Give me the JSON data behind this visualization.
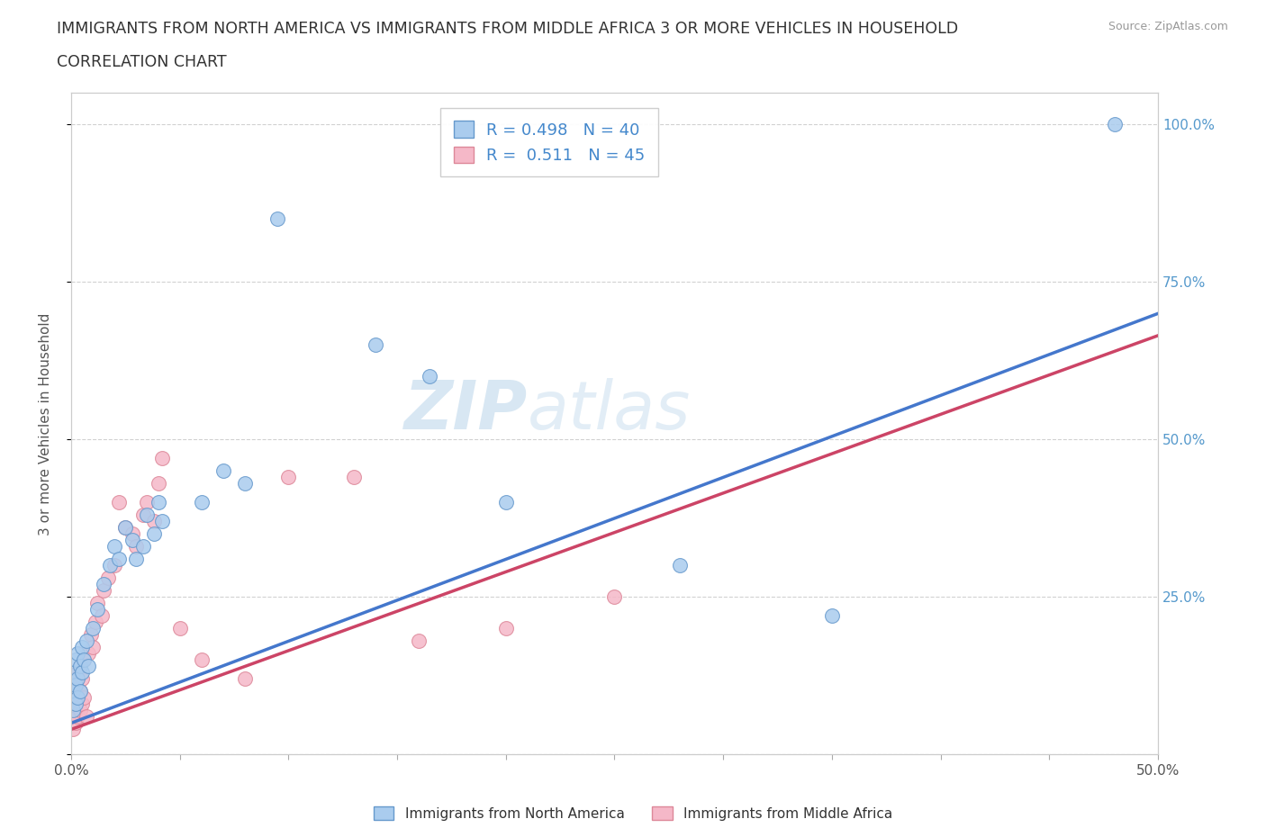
{
  "title_line1": "IMMIGRANTS FROM NORTH AMERICA VS IMMIGRANTS FROM MIDDLE AFRICA 3 OR MORE VEHICLES IN HOUSEHOLD",
  "title_line2": "CORRELATION CHART",
  "source_text": "Source: ZipAtlas.com",
  "ylabel": "3 or more Vehicles in Household",
  "xlim": [
    0.0,
    0.5
  ],
  "ylim": [
    0.0,
    1.05
  ],
  "xticks": [
    0.0,
    0.05,
    0.1,
    0.15,
    0.2,
    0.25,
    0.3,
    0.35,
    0.4,
    0.45,
    0.5
  ],
  "xticklabels": [
    "0.0%",
    "",
    "",
    "",
    "",
    "",
    "",
    "",
    "",
    "",
    "50.0%"
  ],
  "yticks": [
    0.0,
    0.25,
    0.5,
    0.75,
    1.0
  ],
  "yticklabels": [
    "",
    "25.0%",
    "50.0%",
    "75.0%",
    "100.0%"
  ],
  "grid_color": "#cccccc",
  "background_color": "#ffffff",
  "watermark_zip": "ZIP",
  "watermark_atlas": "atlas",
  "north_america_color": "#aaccee",
  "north_america_edge": "#6699cc",
  "middle_africa_color": "#f5b8c8",
  "middle_africa_edge": "#dd8899",
  "trend_north_america_color": "#4477cc",
  "trend_middle_africa_color": "#cc4466",
  "north_america_x": [
    0.001,
    0.001,
    0.001,
    0.002,
    0.002,
    0.002,
    0.003,
    0.003,
    0.003,
    0.004,
    0.004,
    0.005,
    0.005,
    0.006,
    0.007,
    0.008,
    0.01,
    0.012,
    0.015,
    0.018,
    0.02,
    0.022,
    0.025,
    0.028,
    0.03,
    0.033,
    0.035,
    0.038,
    0.04,
    0.042,
    0.06,
    0.07,
    0.08,
    0.095,
    0.14,
    0.165,
    0.2,
    0.28,
    0.35,
    0.48
  ],
  "north_america_y": [
    0.07,
    0.1,
    0.13,
    0.08,
    0.11,
    0.15,
    0.09,
    0.12,
    0.16,
    0.1,
    0.14,
    0.13,
    0.17,
    0.15,
    0.18,
    0.14,
    0.2,
    0.23,
    0.27,
    0.3,
    0.33,
    0.31,
    0.36,
    0.34,
    0.31,
    0.33,
    0.38,
    0.35,
    0.4,
    0.37,
    0.4,
    0.45,
    0.43,
    0.85,
    0.65,
    0.6,
    0.4,
    0.3,
    0.22,
    1.0
  ],
  "middle_africa_x": [
    0.001,
    0.001,
    0.001,
    0.001,
    0.002,
    0.002,
    0.002,
    0.002,
    0.003,
    0.003,
    0.003,
    0.004,
    0.004,
    0.004,
    0.005,
    0.005,
    0.006,
    0.006,
    0.007,
    0.008,
    0.009,
    0.01,
    0.011,
    0.012,
    0.014,
    0.015,
    0.017,
    0.02,
    0.022,
    0.025,
    0.028,
    0.03,
    0.033,
    0.035,
    0.038,
    0.04,
    0.042,
    0.05,
    0.06,
    0.08,
    0.1,
    0.13,
    0.16,
    0.2,
    0.25
  ],
  "middle_africa_y": [
    0.04,
    0.06,
    0.08,
    0.1,
    0.05,
    0.07,
    0.09,
    0.12,
    0.06,
    0.09,
    0.13,
    0.07,
    0.1,
    0.14,
    0.08,
    0.12,
    0.09,
    0.15,
    0.06,
    0.16,
    0.19,
    0.17,
    0.21,
    0.24,
    0.22,
    0.26,
    0.28,
    0.3,
    0.4,
    0.36,
    0.35,
    0.33,
    0.38,
    0.4,
    0.37,
    0.43,
    0.47,
    0.2,
    0.15,
    0.12,
    0.44,
    0.44,
    0.18,
    0.2,
    0.25
  ],
  "trend_na_slope": 1.3,
  "trend_na_intercept": 0.05,
  "trend_ma_slope": 1.25,
  "trend_ma_intercept": 0.04
}
